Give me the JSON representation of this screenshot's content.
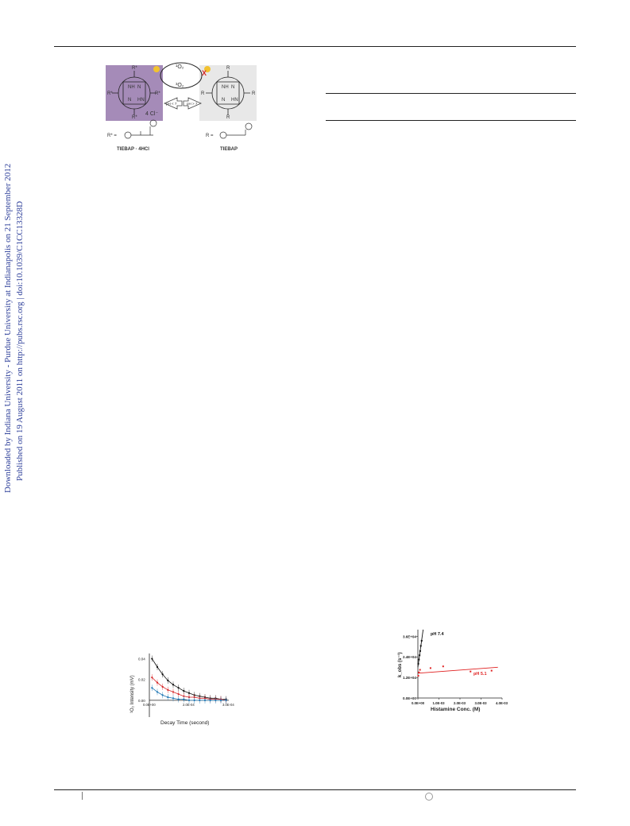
{
  "sidebar": {
    "line1": "Downloaded by Indiana University - Purdue University at Indianapolis on 21 September 2012",
    "line2": "Published on 19 August 2011 on http://pubs.rsc.org | doi:10.1039/C1CC13328D"
  },
  "scheme": {
    "singlet_label": "¹O₂",
    "triplet_label": "³O₂",
    "ph_left": "pH < 7",
    "ph_right": "pH > 7",
    "counterion": "4 Cl⁻",
    "left_name": "TIEBAP · 4HCl",
    "right_name": "TIEBAP",
    "r_label": "R",
    "rstar_label": "R*",
    "nh": "NH",
    "hn": "HN",
    "n": "N",
    "rstar_def": "R* =",
    "r_def": "R ="
  },
  "figure_left": {
    "chart_data": {
      "type": "scatter",
      "ylabel": "¹O₂ Intensity (mV)",
      "xlabel": "Decay Time (second)",
      "x_ticks": [
        "0.0E+00",
        "2.0E-04",
        "3.0E-04"
      ],
      "y_ticks": [
        "0.04",
        "0.02",
        "0.00"
      ],
      "ylim": [
        -0.01,
        0.045
      ],
      "xlim": [
        0,
        0.0003
      ],
      "series": [
        {
          "color": "#111111",
          "x": [
            1e-05,
            3e-05,
            5e-05,
            7e-05,
            9e-05,
            0.00011,
            0.00013,
            0.00015,
            0.00017,
            0.00019,
            0.00021,
            0.00023,
            0.00025,
            0.00027,
            0.00029
          ],
          "values": [
            0.04,
            0.032,
            0.025,
            0.019,
            0.015,
            0.012,
            0.009,
            0.007,
            0.005,
            0.004,
            0.003,
            0.002,
            0.002,
            0.001,
            0.001
          ]
        },
        {
          "color": "#d62728",
          "x": [
            1e-05,
            3e-05,
            5e-05,
            7e-05,
            9e-05,
            0.00011,
            0.00013,
            0.00015,
            0.00017,
            0.00019,
            0.00021,
            0.00023,
            0.00025,
            0.00027,
            0.00029
          ],
          "values": [
            0.022,
            0.017,
            0.013,
            0.01,
            0.008,
            0.006,
            0.004,
            0.003,
            0.003,
            0.002,
            0.002,
            0.001,
            0.001,
            0.001,
            0.0
          ]
        },
        {
          "color": "#1f77b4",
          "x": [
            1e-05,
            3e-05,
            5e-05,
            7e-05,
            9e-05,
            0.00011,
            0.00013,
            0.00015,
            0.00017,
            0.00019,
            0.00021,
            0.00023,
            0.00025,
            0.00027,
            0.00029
          ],
          "values": [
            0.012,
            0.008,
            0.005,
            0.003,
            0.002,
            0.001,
            0.001,
            0.0,
            0.0,
            0.0,
            0.0,
            0.0,
            0.0,
            0.0,
            0.0
          ]
        }
      ]
    }
  },
  "figure_right": {
    "chart_data": {
      "type": "scatter",
      "xlabel": "Histamine Conc. (M)",
      "ylabel": "k_obs (s⁻¹)",
      "x_ticks": [
        "0.0E+00",
        "1.0E-03",
        "2.0E-03",
        "3.0E-03",
        "4.0E-03"
      ],
      "y_ticks": [
        "3.6E+04",
        "2.4E+04",
        "1.2E+04",
        "0.0E+00"
      ],
      "xlim": [
        0,
        0.004
      ],
      "ylim": [
        0,
        40000
      ],
      "series": [
        {
          "name": "pH 7.4",
          "color": "#111111",
          "x": [
            2e-05,
            5e-05,
            8e-05,
            0.00011,
            0.00014,
            0.00018
          ],
          "values": [
            20000,
            22500,
            25000,
            27500,
            30500,
            33500
          ],
          "fit": [
            [
              0,
              18000
            ],
            [
              0.00025,
              40000
            ]
          ]
        },
        {
          "name": "pH 5.1",
          "color": "#e02020",
          "x": [
            2e-05,
            5e-05,
            0.0001,
            0.0006,
            0.0012,
            0.0025,
            0.0035
          ],
          "values": [
            13000,
            15000,
            16500,
            17500,
            18500,
            15500,
            16000
          ],
          "fit": [
            [
              0,
              14500
            ],
            [
              0.0038,
              18000
            ]
          ]
        }
      ]
    }
  }
}
